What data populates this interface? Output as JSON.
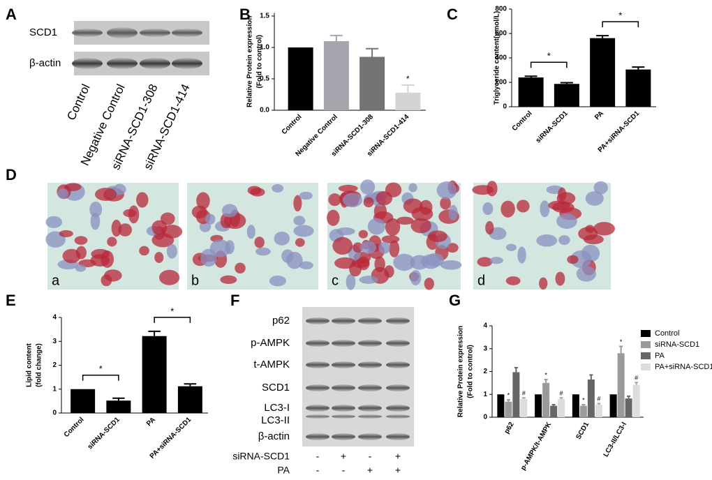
{
  "panel_labels": [
    "A",
    "B",
    "C",
    "D",
    "E",
    "F",
    "G"
  ],
  "blot_a": {
    "rows": [
      "SCD1",
      "β-actin"
    ],
    "lanes": [
      "Control",
      "Negative Control",
      "siRNA-SCD1-308",
      "siRNA-SCD1-414"
    ]
  },
  "images_d": {
    "labels": [
      "a",
      "b",
      "c",
      "d"
    ]
  },
  "blot_f": {
    "rows": [
      "p62",
      "p-AMPK",
      "t-AMPK",
      "SCD1",
      "LC3-I",
      "LC3-II",
      "β-actin"
    ],
    "conditions": [
      {
        "name": "siRNA-SCD1",
        "signs": [
          "-",
          "+",
          "-",
          "+"
        ]
      },
      {
        "name": "PA",
        "signs": [
          "-",
          "-",
          "+",
          "+"
        ]
      }
    ]
  },
  "chart_data": [
    {
      "type": "bar",
      "y_label": [
        "Relative Protein expression",
        "(Fold to control)"
      ],
      "categories": [
        "Control",
        "Negative Control",
        "siRNA-SCD1-308",
        "siRNA-SCD1-414"
      ],
      "values": [
        1.0,
        1.1,
        0.85,
        0.28
      ],
      "errors": [
        0,
        0.09,
        0.13,
        0.12
      ],
      "colors": [
        "#000000",
        "#a5a5ad",
        "#737373",
        "#d4d4d4"
      ],
      "significance": [
        null,
        null,
        null,
        "*"
      ],
      "ylim": [
        0,
        1.55
      ],
      "yticks": [
        {
          "value": 0,
          "label": "0.0"
        },
        0.5,
        {
          "value": 1,
          "label": "1.0"
        },
        1.5
      ]
    },
    {
      "type": "bar",
      "y_label": [
        "Triglyceride content(μmol/L)"
      ],
      "categories": [
        "Control",
        "siRNA-SCD1",
        "PA",
        "PA+siRNA-SCD1"
      ],
      "values": [
        240,
        187,
        562,
        305
      ],
      "errors": [
        10,
        10,
        20,
        20
      ],
      "colors": [
        "#000000",
        "#000000",
        "#000000",
        "#000000"
      ],
      "comparisons": [
        {
          "between": [
            "Control",
            "siRNA-SCD1"
          ],
          "label": "*"
        },
        {
          "between": [
            "PA",
            "PA+siRNA-SCD1"
          ],
          "label": "*"
        }
      ],
      "ylim": [
        0,
        800
      ],
      "yticks": [
        0,
        200,
        400,
        600,
        800
      ]
    },
    {
      "type": "bar",
      "y_label": [
        "Lipid content",
        "(fold change)"
      ],
      "categories": [
        "Control",
        "siRNA-SCD1",
        "PA",
        "PA+siRNA-SCD1"
      ],
      "values": [
        1.0,
        0.52,
        3.22,
        1.12
      ],
      "errors": [
        0,
        0.1,
        0.2,
        0.1
      ],
      "colors": [
        "#000000",
        "#000000",
        "#000000",
        "#000000"
      ],
      "comparisons": [
        {
          "between": [
            "Control",
            "siRNA-SCD1"
          ],
          "label": "*"
        },
        {
          "between": [
            "PA",
            "PA+siRNA-SCD1"
          ],
          "label": "*"
        }
      ],
      "ylim": [
        0,
        4
      ],
      "yticks": [
        0,
        1,
        2,
        3,
        4
      ]
    },
    {
      "type": "grouped_bar",
      "y_label": [
        "Relative Protein expression",
        "(Fold to control)"
      ],
      "categories": [
        "p62",
        "p-AMPK/t-AMPK",
        "SCD1",
        "LC3-II/LC3-I"
      ],
      "series": [
        {
          "name": "Control",
          "color": "#000000",
          "values": [
            1,
            1,
            1,
            1
          ],
          "errors": [
            0,
            0,
            0,
            0
          ]
        },
        {
          "name": "siRNA-SCD1",
          "color": "#9a9a9a",
          "values": [
            0.68,
            1.5,
            0.5,
            2.8
          ],
          "errors": [
            0.08,
            0.15,
            0.05,
            0.3
          ],
          "marks": [
            "*",
            "*",
            "*",
            "*"
          ]
        },
        {
          "name": "PA",
          "color": "#666666",
          "values": [
            1.97,
            0.5,
            1.65,
            0.82
          ],
          "errors": [
            0.2,
            0.05,
            0.2,
            0.1
          ]
        },
        {
          "name": "PA+siRNA-SCD1",
          "color": "#dddddd",
          "values": [
            0.8,
            0.8,
            0.55,
            1.42
          ],
          "errors": [
            0.05,
            0.05,
            0.05,
            0.1
          ],
          "marks": [
            "#",
            "#",
            "#",
            "#"
          ]
        }
      ],
      "ylim": [
        0,
        4
      ],
      "yticks": [
        0,
        1,
        2,
        3,
        4
      ],
      "legend": "right"
    }
  ]
}
